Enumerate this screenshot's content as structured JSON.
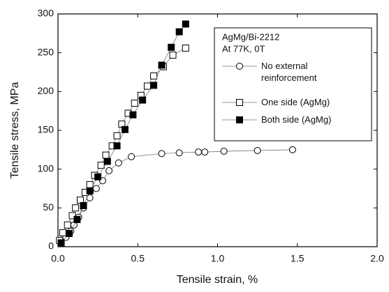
{
  "chart_data": {
    "type": "scatter",
    "x_label": "Tensile strain, %",
    "y_label": "Tensile stress, MPa",
    "legend_title": [
      "AgMg/Bi-2212",
      "At 77K, 0T"
    ],
    "xlim": [
      0,
      2
    ],
    "ylim": [
      0,
      300
    ],
    "xticks": [
      {
        "value": 0,
        "label": "0.0"
      },
      0.5,
      {
        "value": 1,
        "label": "1.0"
      },
      1.5,
      {
        "value": 2,
        "label": "2.0"
      }
    ],
    "yticks": [
      0,
      50,
      100,
      150,
      200,
      250,
      300
    ],
    "series": [
      {
        "name": "No external reinforcement",
        "color": "#000000",
        "marker": "circle",
        "x": [
          0.02,
          0.05,
          0.08,
          0.1,
          0.13,
          0.16,
          0.2,
          0.24,
          0.28,
          0.32,
          0.38,
          0.46,
          0.65,
          0.76,
          0.88,
          0.92,
          1.04,
          1.25,
          1.47
        ],
        "values": [
          5,
          12,
          20,
          28,
          38,
          50,
          63,
          75,
          85,
          98,
          108,
          116,
          120,
          121,
          122,
          122,
          123,
          124,
          125
        ]
      },
      {
        "name": "One side (AgMg)",
        "color": "#000000",
        "marker": "open-square",
        "x": [
          0.01,
          0.03,
          0.06,
          0.09,
          0.11,
          0.14,
          0.17,
          0.2,
          0.23,
          0.27,
          0.3,
          0.34,
          0.37,
          0.4,
          0.44,
          0.48,
          0.52,
          0.56,
          0.6,
          0.66,
          0.72,
          0.8
        ],
        "values": [
          8,
          18,
          28,
          40,
          50,
          60,
          70,
          80,
          92,
          105,
          118,
          130,
          143,
          158,
          172,
          185,
          195,
          207,
          220,
          232,
          247,
          256
        ]
      },
      {
        "name": "Both side (AgMg)",
        "color": "#000000",
        "marker": "filled-square",
        "x": [
          0.02,
          0.07,
          0.12,
          0.16,
          0.2,
          0.25,
          0.31,
          0.37,
          0.42,
          0.47,
          0.53,
          0.6,
          0.65,
          0.71,
          0.76,
          0.8
        ],
        "values": [
          5,
          17,
          35,
          53,
          72,
          90,
          110,
          130,
          151,
          170,
          189,
          208,
          234,
          257,
          277,
          287
        ]
      }
    ]
  }
}
